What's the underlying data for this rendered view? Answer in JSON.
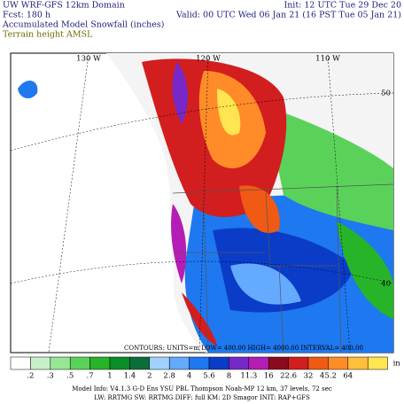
{
  "header": {
    "left": [
      "UW WRF-GFS 12km Domain",
      "Fcst:  180 h",
      "Accumulated Model Snowfall (inches)"
    ],
    "terrain": "Terrain height AMSL",
    "right": [
      "Init: 12 UTC Tue 29 Dec 20",
      "Valid: 00 UTC Wed 06 Jan 21 (16 PST Tue 05 Jan 21)"
    ]
  },
  "map": {
    "lon_labels": [
      "130 W",
      "120 W",
      "110 W"
    ],
    "lat_labels": [
      "50",
      "40"
    ],
    "contour_note": "CONTOURS: UNITS=m   LOW= 400.00   HIGH= 4000.00   INTERVAL= 400.00"
  },
  "colorbar": {
    "labels": [
      ".2",
      ".3",
      ".5",
      ".7",
      "1",
      "1.4",
      "2",
      "2.8",
      "4",
      "5.6",
      "8",
      "11.3",
      "16",
      "22.6",
      "32",
      "45.2",
      "64"
    ],
    "unit": "in",
    "colors": [
      "#ffffff",
      "#c8f0c8",
      "#96e696",
      "#5ad25a",
      "#28b428",
      "#0a8c28",
      "#0a6e3c",
      "#a0d2ff",
      "#64aaff",
      "#1e78f0",
      "#0a3cc8",
      "#7828c8",
      "#b41eb4",
      "#8c0a1e",
      "#d21e1e",
      "#f05a14",
      "#ff8c28",
      "#ffbe3c",
      "#ffe650"
    ]
  },
  "footer": [
    "Model Info: V4.1.3   G-D Ens YSU PBL   Thompson   Noah-MP   12 km,  37 levels,  72 sec",
    "LW: RRTMG  SW: RRTMG  DIFF: full  KM: 2D Smagor  INIT: RAP+GFS"
  ]
}
